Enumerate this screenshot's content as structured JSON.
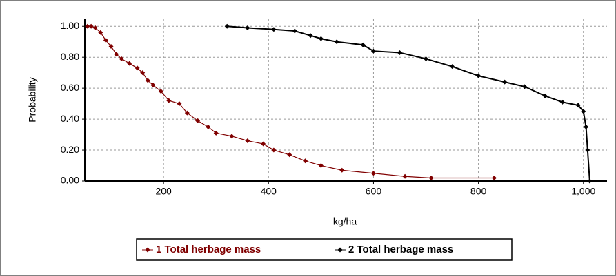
{
  "chart_data": {
    "type": "line",
    "x_label": "kg/ha",
    "y_label": "Probability",
    "xlim": [
      50,
      1045
    ],
    "xticks": [
      200,
      400,
      600,
      800,
      {
        "value": 1000,
        "label": "1,000"
      }
    ],
    "ylim": [
      0,
      1.05
    ],
    "yticks": [
      {
        "value": 0,
        "label": "0.00"
      },
      {
        "value": 0.2,
        "label": "0.20"
      },
      {
        "value": 0.4,
        "label": "0.40"
      },
      {
        "value": 0.6,
        "label": "0.60"
      },
      {
        "value": 0.8,
        "label": "0.80"
      },
      {
        "value": 1,
        "label": "1.00"
      }
    ],
    "grid": true,
    "legend": "bottom",
    "series": [
      {
        "name": "1 Total herbage mass",
        "color": "#800000",
        "x": [
          55,
          62,
          70,
          80,
          90,
          100,
          110,
          120,
          135,
          150,
          160,
          170,
          180,
          195,
          210,
          230,
          245,
          265,
          285,
          300,
          330,
          360,
          390,
          410,
          440,
          470,
          500,
          540,
          600,
          660,
          710,
          830
        ],
        "values": [
          1.0,
          1.0,
          0.99,
          0.96,
          0.91,
          0.87,
          0.82,
          0.79,
          0.76,
          0.73,
          0.7,
          0.65,
          0.62,
          0.58,
          0.52,
          0.5,
          0.44,
          0.39,
          0.35,
          0.31,
          0.29,
          0.26,
          0.24,
          0.2,
          0.17,
          0.13,
          0.1,
          0.07,
          0.05,
          0.03,
          0.02,
          0.02
        ]
      },
      {
        "name": "2 Total herbage mass",
        "color": "#000000",
        "x": [
          321,
          360,
          410,
          450,
          480,
          500,
          530,
          580,
          600,
          650,
          700,
          750,
          800,
          850,
          888,
          927,
          960,
          990,
          1000,
          1005,
          1008,
          1012
        ],
        "values": [
          1.0,
          0.99,
          0.98,
          0.97,
          0.94,
          0.92,
          0.9,
          0.88,
          0.84,
          0.83,
          0.79,
          0.74,
          0.68,
          0.64,
          0.61,
          0.55,
          0.51,
          0.49,
          0.45,
          0.35,
          0.2,
          0.0
        ]
      }
    ]
  }
}
